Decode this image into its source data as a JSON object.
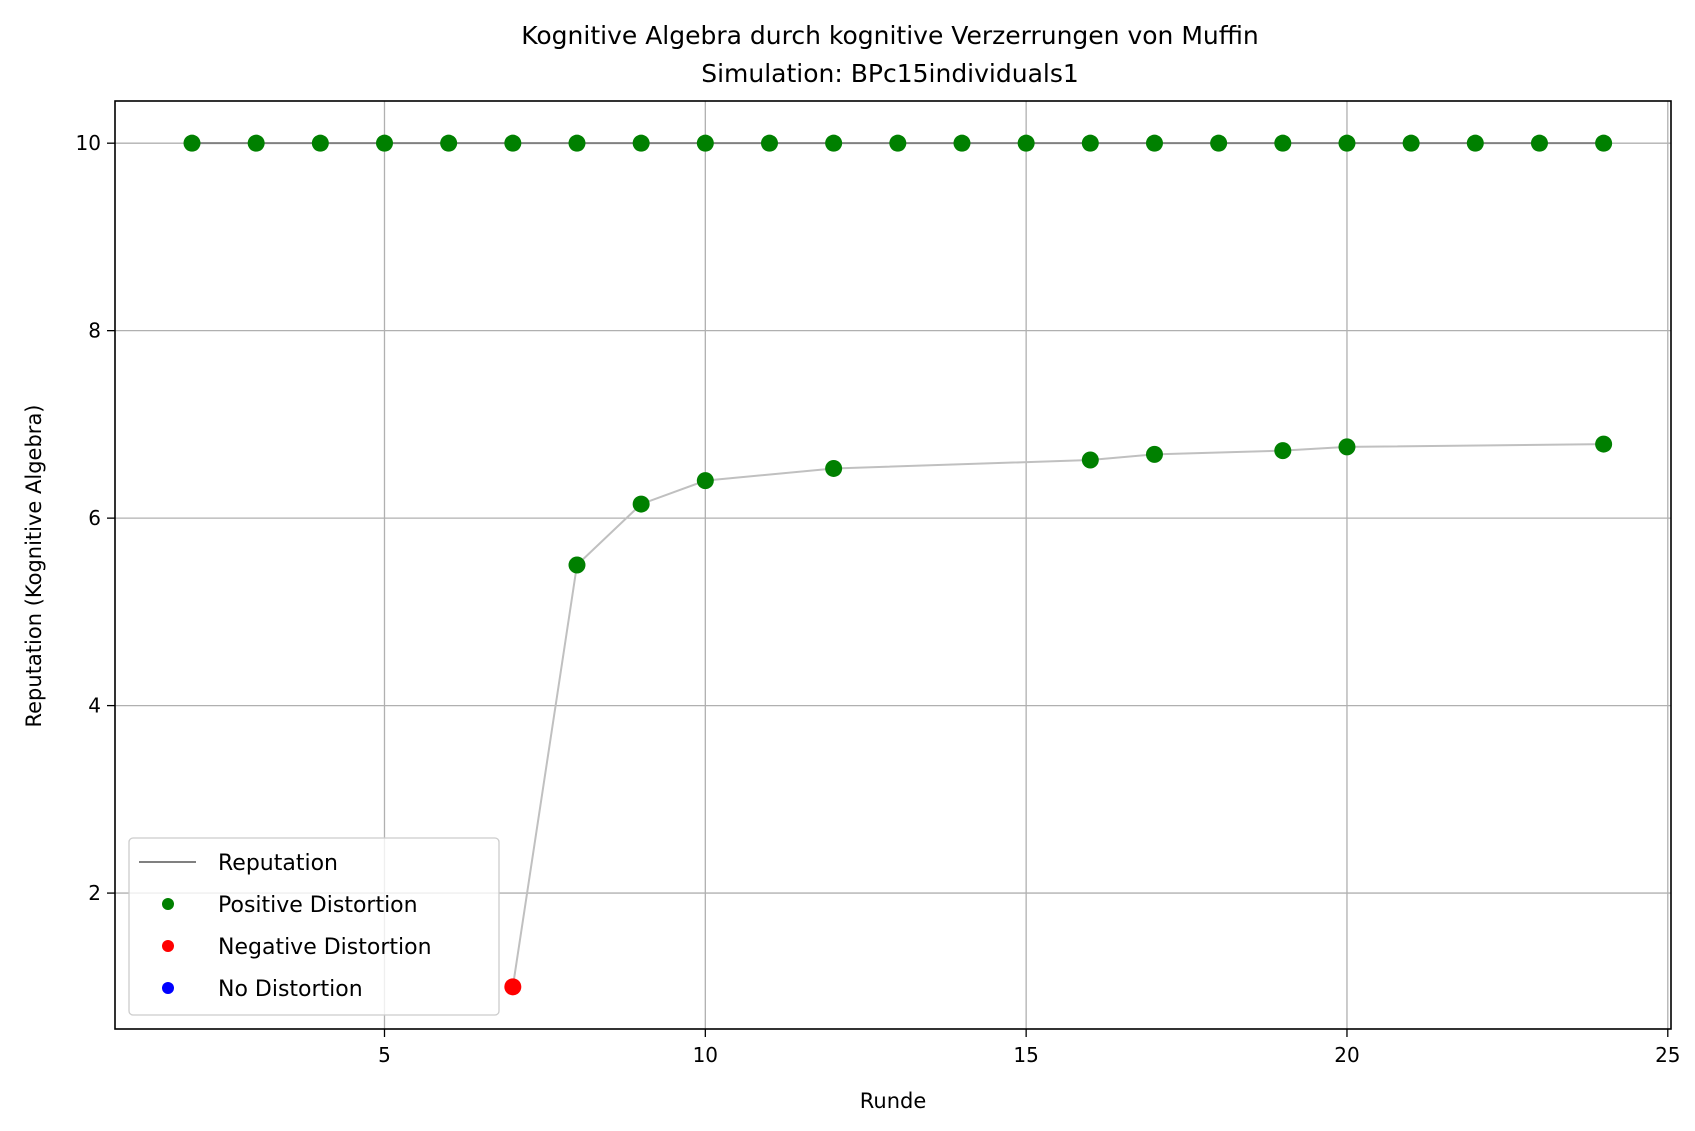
{
  "chart_data": {
    "type": "line",
    "title": "Kognitive Algebra durch kognitive Verzerrungen von Muffin",
    "subtitle": "Simulation: BPc15individuals1",
    "xlabel": "Runde",
    "ylabel": "Reputation (Kognitive Algebra)",
    "xlim": [
      0.8,
      25.05
    ],
    "ylim": [
      0.55,
      10.45
    ],
    "xticks": [
      5,
      10,
      15,
      20,
      25
    ],
    "yticks": [
      2,
      4,
      6,
      8,
      10
    ],
    "grid": true,
    "legend_position": "lower-left",
    "legend": [
      {
        "label": "Reputation",
        "kind": "line",
        "color": "#808080"
      },
      {
        "label": "Positive Distortion",
        "kind": "dot",
        "color": "#008000"
      },
      {
        "label": "Negative Distortion",
        "kind": "dot",
        "color": "#ff0000"
      },
      {
        "label": "No Distortion",
        "kind": "dot",
        "color": "#0000ff"
      }
    ],
    "series": [
      {
        "name": "Reputation",
        "color": "#808080",
        "x": [
          2,
          3,
          4,
          4,
          5,
          5,
          6,
          7,
          8,
          9,
          9,
          10,
          11,
          12,
          13,
          14,
          15,
          15,
          16,
          17,
          18,
          18,
          19,
          19,
          20,
          20,
          21,
          22,
          23,
          23,
          24,
          24
        ],
        "y": [
          10,
          10,
          10,
          10,
          10,
          10,
          10,
          10,
          10,
          10,
          10,
          10,
          10,
          10,
          10,
          10,
          10,
          10,
          10,
          10,
          10,
          10,
          10,
          10,
          10,
          10,
          10,
          10,
          10,
          10,
          10,
          10
        ]
      },
      {
        "name": "Reputation",
        "color": "#c0c0c0",
        "x": [
          7,
          8,
          9,
          10,
          12,
          16,
          17,
          19,
          20,
          24
        ],
        "y": [
          1.0,
          5.5,
          6.15,
          6.4,
          6.53,
          6.62,
          6.68,
          6.72,
          6.76,
          6.79
        ]
      }
    ],
    "points": [
      {
        "x": 2,
        "y": 10,
        "type": "positive"
      },
      {
        "x": 3,
        "y": 10,
        "type": "positive"
      },
      {
        "x": 4,
        "y": 10,
        "type": "positive"
      },
      {
        "x": 5,
        "y": 10,
        "type": "positive"
      },
      {
        "x": 6,
        "y": 10,
        "type": "positive"
      },
      {
        "x": 7,
        "y": 10,
        "type": "positive"
      },
      {
        "x": 8,
        "y": 10,
        "type": "positive"
      },
      {
        "x": 9,
        "y": 10,
        "type": "positive"
      },
      {
        "x": 10,
        "y": 10,
        "type": "positive"
      },
      {
        "x": 11,
        "y": 10,
        "type": "positive"
      },
      {
        "x": 12,
        "y": 10,
        "type": "positive"
      },
      {
        "x": 13,
        "y": 10,
        "type": "positive"
      },
      {
        "x": 14,
        "y": 10,
        "type": "positive"
      },
      {
        "x": 15,
        "y": 10,
        "type": "positive"
      },
      {
        "x": 16,
        "y": 10,
        "type": "positive"
      },
      {
        "x": 17,
        "y": 10,
        "type": "positive"
      },
      {
        "x": 18,
        "y": 10,
        "type": "positive"
      },
      {
        "x": 19,
        "y": 10,
        "type": "positive"
      },
      {
        "x": 20,
        "y": 10,
        "type": "positive"
      },
      {
        "x": 21,
        "y": 10,
        "type": "positive"
      },
      {
        "x": 22,
        "y": 10,
        "type": "positive"
      },
      {
        "x": 23,
        "y": 10,
        "type": "positive"
      },
      {
        "x": 24,
        "y": 10,
        "type": "positive"
      },
      {
        "x": 7,
        "y": 1.0,
        "type": "negative"
      },
      {
        "x": 8,
        "y": 5.5,
        "type": "positive"
      },
      {
        "x": 9,
        "y": 6.15,
        "type": "positive"
      },
      {
        "x": 10,
        "y": 6.4,
        "type": "positive"
      },
      {
        "x": 12,
        "y": 6.53,
        "type": "positive"
      },
      {
        "x": 16,
        "y": 6.62,
        "type": "positive"
      },
      {
        "x": 17,
        "y": 6.68,
        "type": "positive"
      },
      {
        "x": 19,
        "y": 6.72,
        "type": "positive"
      },
      {
        "x": 20,
        "y": 6.76,
        "type": "positive"
      },
      {
        "x": 24,
        "y": 6.79,
        "type": "positive"
      }
    ],
    "point_colors": {
      "positive": "#008000",
      "negative": "#ff0000",
      "none": "#0000ff"
    }
  }
}
